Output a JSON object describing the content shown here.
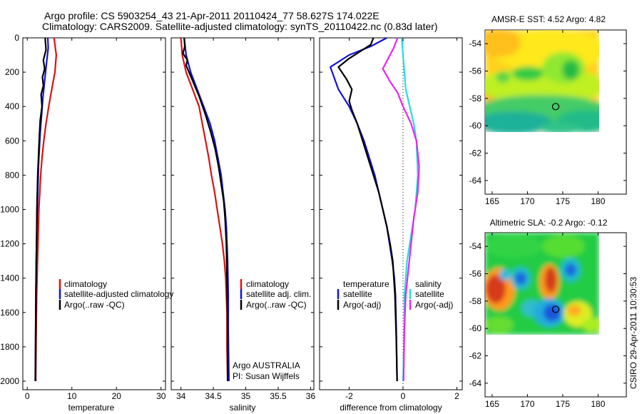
{
  "title_line1": "Argo profile: CS 5903254_43 21-Apr-2011 20110424_77 58.627S 174.022E",
  "title_line2": "Climatology: CARS2009. Satellite-adjusted climatology: synTS_20110422.nc (0.83d later)",
  "footer_vertical": "CSIRO 29-Apr-2011 10:30:53",
  "colors": {
    "red": "#dd1111",
    "blue": "#1111dd",
    "black": "#000000",
    "cyan": "#22dddd",
    "magenta": "#ee22ee"
  },
  "chart_data": [
    {
      "type": "line",
      "id": "temperature",
      "xlabel": "temperature",
      "xlim": [
        -1,
        31
      ],
      "ylim": [
        0,
        2050
      ],
      "xticks": [
        0,
        10,
        20,
        30
      ],
      "yticks": [
        0,
        200,
        400,
        600,
        800,
        1000,
        1200,
        1400,
        1600,
        1800,
        2000
      ],
      "series": [
        {
          "name": "climatology",
          "color": "red",
          "x": [
            6.0,
            6.3,
            6.5,
            6.2,
            5.5,
            4.8,
            4.2,
            3.7,
            3.3,
            3.0,
            2.8,
            2.6,
            2.5,
            2.4,
            2.3,
            2.2,
            2.1,
            2.05,
            2.0,
            1.95,
            1.9
          ],
          "y": [
            0,
            60,
            100,
            200,
            300,
            400,
            500,
            600,
            700,
            800,
            900,
            1000,
            1100,
            1200,
            1300,
            1400,
            1500,
            1600,
            1700,
            1850,
            2000
          ]
        },
        {
          "name": "satellite-adjusted climatology",
          "color": "blue",
          "x": [
            4.6,
            4.7,
            4.3,
            3.9,
            3.5,
            3.2,
            2.9,
            2.7,
            2.5,
            2.4,
            2.3,
            2.2,
            2.1,
            2.05,
            2.0,
            1.95,
            1.9,
            1.85,
            1.82,
            1.8
          ],
          "y": [
            0,
            60,
            150,
            250,
            350,
            450,
            550,
            650,
            750,
            850,
            950,
            1050,
            1150,
            1250,
            1350,
            1500,
            1650,
            1800,
            1900,
            2000
          ]
        },
        {
          "name": "Argo(..raw -QC)",
          "color": "black",
          "x": [
            4.0,
            4.2,
            3.6,
            3.9,
            3.4,
            3.6,
            3.1,
            3.3,
            2.9,
            2.7,
            2.5,
            2.35,
            2.25,
            2.15,
            2.1,
            2.0,
            1.95,
            1.9,
            1.85,
            1.8
          ],
          "y": [
            0,
            70,
            130,
            180,
            230,
            280,
            330,
            400,
            480,
            580,
            700,
            800,
            900,
            1000,
            1150,
            1300,
            1450,
            1650,
            1850,
            2000
          ]
        }
      ],
      "legend": [
        "climatology",
        "satellite-adjusted climatology",
        "Argo(..raw -QC)"
      ]
    },
    {
      "type": "line",
      "id": "salinity",
      "xlabel": "salinity",
      "xlim": [
        33.85,
        36.05
      ],
      "ylim": [
        0,
        2050
      ],
      "xticks": [
        34,
        34.5,
        35,
        35.5,
        36
      ],
      "series": [
        {
          "name": "climatology",
          "color": "red",
          "x": [
            34.0,
            34.02,
            34.08,
            34.18,
            34.28,
            34.33,
            34.38,
            34.43,
            34.47,
            34.52,
            34.56,
            34.6,
            34.64,
            34.67,
            34.69,
            34.7,
            34.71,
            34.71,
            34.72
          ],
          "y": [
            0,
            100,
            200,
            300,
            400,
            500,
            600,
            700,
            800,
            900,
            1000,
            1100,
            1200,
            1300,
            1400,
            1500,
            1600,
            1800,
            2000
          ]
        },
        {
          "name": "satellite adj. clim.",
          "color": "blue",
          "x": [
            34.05,
            34.08,
            34.15,
            34.25,
            34.35,
            34.45,
            34.52,
            34.57,
            34.62,
            34.65,
            34.68,
            34.7,
            34.71,
            34.72,
            34.73,
            34.73,
            34.74
          ],
          "y": [
            0,
            100,
            200,
            300,
            400,
            500,
            600,
            700,
            800,
            900,
            1000,
            1100,
            1200,
            1300,
            1500,
            1700,
            2000
          ]
        },
        {
          "name": "Argo(..raw -QC)",
          "color": "black",
          "x": [
            34.05,
            34.06,
            34.03,
            34.1,
            34.08,
            34.18,
            34.28,
            34.38,
            34.46,
            34.53,
            34.58,
            34.62,
            34.66,
            34.68,
            34.7,
            34.71,
            34.72,
            34.72
          ],
          "y": [
            0,
            50,
            90,
            130,
            160,
            250,
            340,
            450,
            550,
            650,
            750,
            850,
            950,
            1050,
            1200,
            1400,
            1700,
            2000
          ]
        }
      ],
      "legend": [
        "climatology",
        "satellite adj. clim.",
        "Argo(..raw -QC)"
      ],
      "annotations": [
        "Argo AUSTRALIA",
        "PI: Susan Wijffels"
      ]
    },
    {
      "type": "line",
      "id": "difference",
      "xlabel": "difference from climatology",
      "xlim": [
        -3.1,
        2.2
      ],
      "ylim": [
        0,
        2050
      ],
      "xticks": [
        -2,
        0,
        2
      ],
      "series": [
        {
          "name": "temperature satellite",
          "color": "blue",
          "x": [
            -0.6,
            -1.2,
            -2.0,
            -2.7,
            -2.4,
            -2.0,
            -1.7,
            -1.45,
            -1.25,
            -1.05,
            -0.9,
            -0.75,
            -0.6,
            -0.5,
            -0.4,
            -0.32,
            -0.28,
            -0.25,
            -0.23,
            -0.22
          ],
          "y": [
            0,
            50,
            100,
            170,
            300,
            400,
            500,
            600,
            700,
            800,
            900,
            1000,
            1100,
            1200,
            1300,
            1400,
            1500,
            1700,
            1900,
            2000
          ]
        },
        {
          "name": "temperature Argo(-adj)",
          "color": "black",
          "x": [
            -1.1,
            -1.2,
            -2.0,
            -2.4,
            -2.1,
            -1.9,
            -2.0,
            -1.9,
            -1.7,
            -1.5,
            -1.3,
            -1.1,
            -0.9,
            -0.75,
            -0.6,
            -0.48,
            -0.38,
            -0.3,
            -0.25,
            -0.22
          ],
          "y": [
            0,
            40,
            120,
            170,
            240,
            300,
            370,
            420,
            500,
            600,
            700,
            800,
            900,
            1000,
            1100,
            1200,
            1300,
            1500,
            1750,
            2000
          ]
        },
        {
          "name": "salinity satellite",
          "color": "cyan",
          "x": [
            -0.05,
            0.0,
            0.05,
            0.1,
            0.25,
            0.4,
            0.5,
            0.55,
            0.45,
            0.35,
            0.25,
            0.15,
            0.1,
            0.05,
            0.05,
            0.0
          ],
          "y": [
            0,
            100,
            200,
            300,
            400,
            500,
            600,
            800,
            1000,
            1100,
            1200,
            1300,
            1400,
            1500,
            1700,
            2000
          ]
        },
        {
          "name": "salinity Argo(-adj)",
          "color": "magenta",
          "x": [
            -0.2,
            -0.35,
            -0.75,
            -0.5,
            -0.2,
            0.0,
            0.3,
            0.5,
            0.6,
            0.55,
            0.4,
            0.3,
            0.2,
            0.1,
            0.05,
            0.02
          ],
          "y": [
            0,
            60,
            180,
            250,
            320,
            400,
            500,
            600,
            750,
            900,
            1050,
            1200,
            1350,
            1500,
            1700,
            2000
          ]
        }
      ],
      "legend_left_title": "temperature",
      "legend_right_title": "salinity",
      "legend_left": [
        "satellite",
        "Argo(-adj)"
      ],
      "legend_right": [
        "satellite",
        "Argo(-adj)"
      ]
    }
  ],
  "maps": [
    {
      "title": "AMSR-E SST: 4.52 Argo: 4.82",
      "xticks": [
        165,
        170,
        175,
        180
      ],
      "yticks": [
        -54,
        -56,
        -58,
        -60,
        -62,
        -64
      ],
      "xlim": [
        164,
        184
      ],
      "ylim": [
        -65,
        -53
      ],
      "data_extent": {
        "lon": [
          164,
          180
        ],
        "lat": [
          -60,
          -53
        ]
      },
      "marker": {
        "lon": 174.0,
        "lat": -58.6
      }
    },
    {
      "title": "Altimetric SLA: -0.2 Argo: -0.12",
      "xticks": [
        165,
        170,
        175,
        180
      ],
      "yticks": [
        -54,
        -56,
        -58,
        -60,
        -62,
        -64
      ],
      "xlim": [
        164,
        184
      ],
      "ylim": [
        -65,
        -53
      ],
      "data_extent": {
        "lon": [
          164,
          180
        ],
        "lat": [
          -60,
          -53
        ]
      },
      "marker": {
        "lon": 174.0,
        "lat": -58.6
      }
    }
  ]
}
